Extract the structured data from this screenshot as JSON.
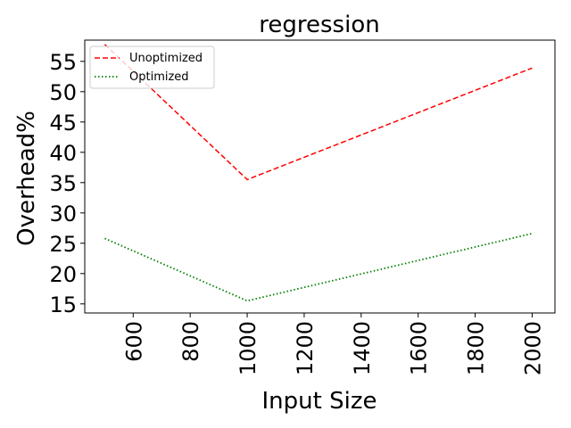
{
  "chart_data": {
    "type": "line",
    "title": "regression",
    "xlabel": "Input Size",
    "ylabel": "Overhead%",
    "xlim": [
      430,
      2080
    ],
    "ylim": [
      13.5,
      58.5
    ],
    "xticks": [
      600,
      800,
      1000,
      1200,
      1400,
      1600,
      1800,
      2000
    ],
    "yticks": [
      15,
      20,
      25,
      30,
      35,
      40,
      45,
      50,
      55
    ],
    "grid": false,
    "legend": "top-left",
    "series": [
      {
        "name": "Unoptimized",
        "color": "#ff0000",
        "style": "dashed",
        "x": [
          500,
          1000,
          2000
        ],
        "y": [
          57.8,
          35.5,
          53.9
        ]
      },
      {
        "name": "Optimized",
        "color": "#008000",
        "style": "dotted",
        "x": [
          500,
          1000,
          2000
        ],
        "y": [
          25.8,
          15.5,
          26.6
        ]
      }
    ]
  }
}
